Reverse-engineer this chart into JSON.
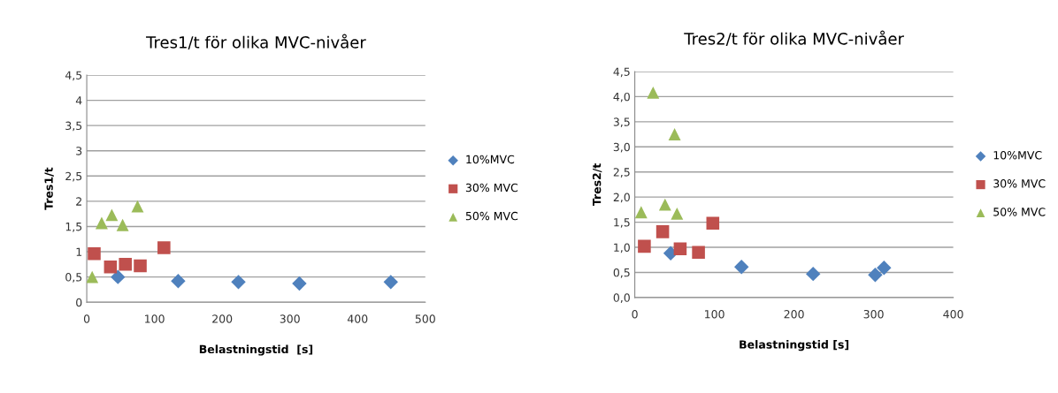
{
  "chart_data": [
    {
      "type": "scatter",
      "title": "Tres1/t för olika MVC-nivåer",
      "xlabel": "Belastningstid  [s]",
      "ylabel": "Tres1/t",
      "xlim": [
        0,
        500
      ],
      "xticks": [
        0,
        100,
        200,
        300,
        400,
        500
      ],
      "ylim": [
        0,
        4.5
      ],
      "yticks": [
        0,
        {
          "value": 0.5,
          "label": "0,5"
        },
        1,
        {
          "value": 1.5,
          "label": "1,5"
        },
        2,
        {
          "value": 2.5,
          "label": "2,5"
        },
        3,
        {
          "value": 3.5,
          "label": "3,5"
        },
        4,
        {
          "value": 4.5,
          "label": "4,5"
        }
      ],
      "grid": "y",
      "legend": "right",
      "series": [
        {
          "name": "10%MVC",
          "color": "#4f81bd",
          "marker": "diamond",
          "x": [
            46,
            135,
            224,
            314,
            449
          ],
          "values": [
            0.5,
            0.42,
            0.4,
            0.37,
            0.4
          ]
        },
        {
          "name": "30% MVC",
          "color": "#c0504d",
          "marker": "square",
          "x": [
            11,
            35,
            57,
            79,
            114
          ],
          "values": [
            0.96,
            0.7,
            0.75,
            0.72,
            1.08
          ]
        },
        {
          "name": "50% MVC",
          "color": "#9bbb59",
          "marker": "triangle",
          "x": [
            8,
            22,
            37,
            53,
            75
          ],
          "values": [
            0.5,
            1.57,
            1.73,
            1.53,
            1.9
          ]
        }
      ]
    },
    {
      "type": "scatter",
      "title": "Tres2/t för olika MVC-nivåer",
      "xlabel": "Belastningstid [s]",
      "ylabel": "Tres2/t",
      "xlim": [
        0,
        400
      ],
      "xticks": [
        0,
        100,
        200,
        300,
        400
      ],
      "ylim": [
        0,
        4.5
      ],
      "yticks": [
        {
          "value": 0,
          "label": "0,0"
        },
        {
          "value": 0.5,
          "label": "0,5"
        },
        {
          "value": 1,
          "label": "1,0"
        },
        {
          "value": 1.5,
          "label": "1,5"
        },
        {
          "value": 2,
          "label": "2,0"
        },
        {
          "value": 2.5,
          "label": "2,5"
        },
        {
          "value": 3,
          "label": "3,0"
        },
        {
          "value": 3.5,
          "label": "3,5"
        },
        {
          "value": 4,
          "label": "4,0"
        },
        {
          "value": 4.5,
          "label": "4,5"
        }
      ],
      "grid": "y",
      "legend": "right",
      "series": [
        {
          "name": "10%MVC",
          "color": "#4f81bd",
          "marker": "diamond",
          "x": [
            45,
            134,
            224,
            302,
            313
          ],
          "values": [
            0.88,
            0.61,
            0.47,
            0.45,
            0.59
          ]
        },
        {
          "name": "30% MVC",
          "color": "#c0504d",
          "marker": "square",
          "x": [
            12,
            35,
            57,
            80,
            98
          ],
          "values": [
            1.02,
            1.31,
            0.97,
            0.9,
            1.48
          ]
        },
        {
          "name": "50% MVC",
          "color": "#9bbb59",
          "marker": "triangle",
          "x": [
            8,
            23,
            38,
            50,
            53
          ],
          "values": [
            1.7,
            4.08,
            1.85,
            3.25,
            1.67
          ]
        }
      ]
    }
  ]
}
